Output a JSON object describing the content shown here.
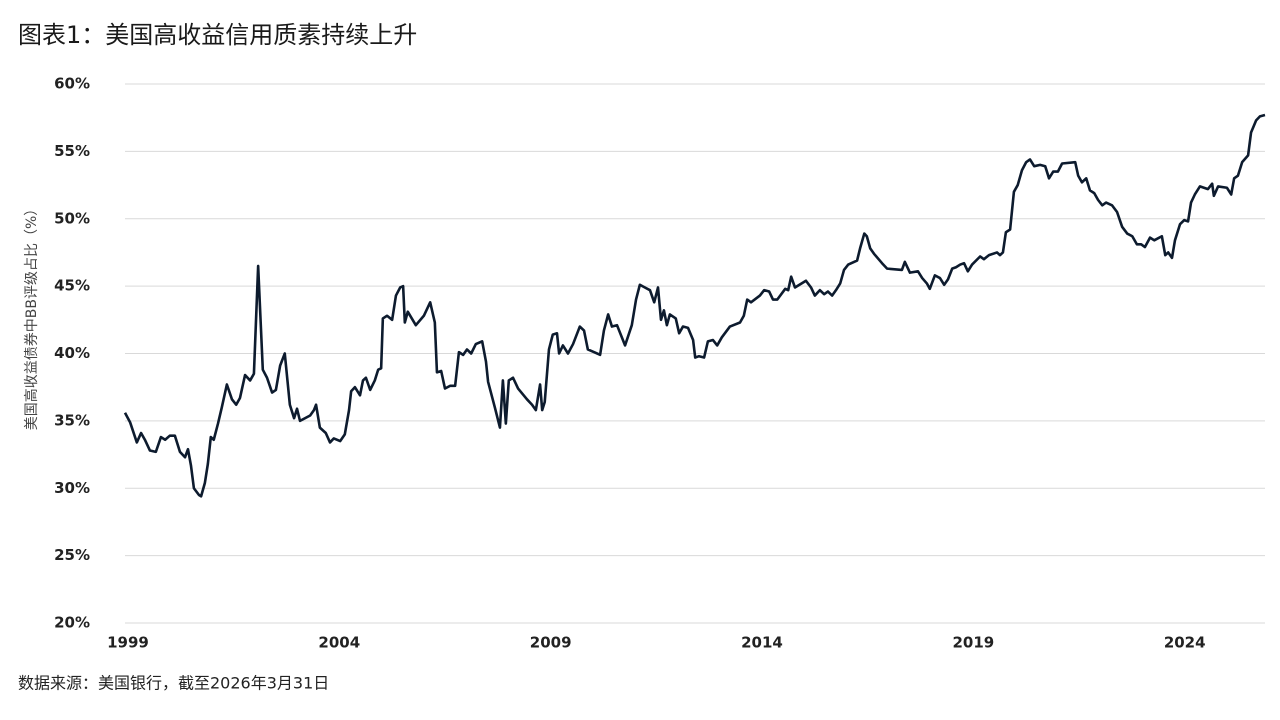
{
  "chart_data": {
    "type": "line",
    "title": "图表1：美国高收益信用质素持续上升",
    "y_label": "美国高收益债券中BB评级占比（%）",
    "source": "数据来源：美国银行，截至2026年3月31日",
    "xlim": [
      1998.93,
      2025.9
    ],
    "xticks": [
      1999,
      2004,
      2009,
      2014,
      2019,
      2024
    ],
    "ylim": [
      20,
      60
    ],
    "yticks": [
      {
        "value": 20,
        "label": "20%"
      },
      {
        "value": 25,
        "label": "25%"
      },
      {
        "value": 30,
        "label": "30%"
      },
      {
        "value": 35,
        "label": "35%"
      },
      {
        "value": 40,
        "label": "40%"
      },
      {
        "value": 45,
        "label": "45%"
      },
      {
        "value": 50,
        "label": "50%"
      },
      {
        "value": 55,
        "label": "55%"
      },
      {
        "value": 60,
        "label": "60%"
      }
    ],
    "grid": true,
    "series": [
      {
        "color": "#0d1b2e",
        "x": [
          1998.93,
          1999.05,
          1999.21,
          1999.31,
          1999.4,
          1999.52,
          1999.66,
          1999.78,
          1999.88,
          1999.99,
          2000.11,
          2000.23,
          2000.35,
          2000.42,
          2000.49,
          2000.56,
          2000.68,
          2000.73,
          2000.82,
          2000.89,
          2000.96,
          2001.03,
          2001.13,
          2001.22,
          2001.34,
          2001.46,
          2001.56,
          2001.65,
          2001.77,
          2001.89,
          2001.98,
          2002.08,
          2002.19,
          2002.29,
          2002.41,
          2002.5,
          2002.6,
          2002.71,
          2002.83,
          2002.93,
          2003.0,
          2003.07,
          2003.31,
          2003.4,
          2003.45,
          2003.54,
          2003.68,
          2003.78,
          2003.87,
          2004.02,
          2004.13,
          2004.23,
          2004.28,
          2004.37,
          2004.49,
          2004.56,
          2004.63,
          2004.73,
          2004.84,
          2004.92,
          2004.99,
          2005.03,
          2005.13,
          2005.25,
          2005.34,
          2005.44,
          2005.51,
          2005.55,
          2005.62,
          2005.81,
          2006.0,
          2006.15,
          2006.26,
          2006.31,
          2006.41,
          2006.5,
          2006.62,
          2006.74,
          2006.83,
          2006.93,
          2007.02,
          2007.12,
          2007.23,
          2007.38,
          2007.47,
          2007.52,
          2007.68,
          2007.8,
          2007.87,
          2007.94,
          2008.01,
          2008.11,
          2008.23,
          2008.44,
          2008.56,
          2008.65,
          2008.75,
          2008.8,
          2008.86,
          2008.96,
          2009.05,
          2009.15,
          2009.2,
          2009.29,
          2009.41,
          2009.53,
          2009.69,
          2009.79,
          2009.88,
          2010.03,
          2010.17,
          2010.26,
          2010.36,
          2010.45,
          2010.57,
          2010.76,
          2010.92,
          2011.02,
          2011.11,
          2011.23,
          2011.35,
          2011.45,
          2011.54,
          2011.61,
          2011.68,
          2011.75,
          2011.82,
          2011.96,
          2012.04,
          2012.13,
          2012.25,
          2012.37,
          2012.42,
          2012.51,
          2012.63,
          2012.72,
          2012.84,
          2012.94,
          2013.05,
          2013.24,
          2013.48,
          2013.57,
          2013.65,
          2013.74,
          2013.95,
          2014.05,
          2014.17,
          2014.26,
          2014.36,
          2014.55,
          2014.62,
          2014.69,
          2014.78,
          2015.04,
          2015.16,
          2015.25,
          2015.37,
          2015.47,
          2015.56,
          2015.66,
          2015.75,
          2015.85,
          2015.94,
          2016.04,
          2016.25,
          2016.32,
          2016.42,
          2016.48,
          2016.56,
          2016.65,
          2016.84,
          2016.96,
          2017.31,
          2017.38,
          2017.5,
          2017.69,
          2017.79,
          2017.9,
          2017.97,
          2018.09,
          2018.21,
          2018.31,
          2018.4,
          2018.5,
          2018.59,
          2018.69,
          2018.78,
          2018.87,
          2018.97,
          2019.16,
          2019.25,
          2019.37,
          2019.56,
          2019.63,
          2019.7,
          2019.77,
          2019.87,
          2019.96,
          2020.05,
          2020.15,
          2020.25,
          2020.34,
          2020.44,
          2020.58,
          2020.7,
          2020.79,
          2020.89,
          2021.0,
          2021.1,
          2021.41,
          2021.48,
          2021.57,
          2021.67,
          2021.76,
          2021.86,
          2021.95,
          2022.05,
          2022.14,
          2022.28,
          2022.4,
          2022.52,
          2022.64,
          2022.76,
          2022.87,
          2022.97,
          2023.06,
          2023.18,
          2023.28,
          2023.46,
          2023.54,
          2023.61,
          2023.7,
          2023.77,
          2023.89,
          2023.99,
          2024.08,
          2024.15,
          2024.24,
          2024.36,
          2024.55,
          2024.65,
          2024.69,
          2024.79,
          2025.0,
          2025.1,
          2025.17,
          2025.26,
          2025.36,
          2025.5,
          2025.57,
          2025.69,
          2025.78,
          2025.9
        ],
        "values": [
          35.6,
          34.9,
          33.4,
          34.1,
          33.6,
          32.8,
          32.7,
          33.8,
          33.6,
          33.9,
          33.9,
          32.7,
          32.3,
          32.9,
          31.7,
          30.0,
          29.5,
          29.4,
          30.4,
          31.8,
          33.8,
          33.6,
          34.8,
          36.0,
          37.7,
          36.6,
          36.2,
          36.7,
          38.4,
          38.0,
          38.5,
          46.5,
          38.8,
          38.2,
          37.1,
          37.3,
          39.1,
          40.0,
          36.2,
          35.2,
          35.9,
          35.0,
          35.4,
          35.8,
          36.2,
          34.5,
          34.1,
          33.4,
          33.7,
          33.5,
          34.0,
          35.8,
          37.2,
          37.5,
          36.9,
          38.0,
          38.2,
          37.3,
          38.0,
          38.8,
          38.9,
          42.6,
          42.8,
          42.5,
          44.3,
          44.9,
          45.0,
          42.3,
          43.1,
          42.1,
          42.8,
          43.8,
          42.3,
          38.6,
          38.7,
          37.4,
          37.6,
          37.6,
          40.1,
          39.9,
          40.3,
          40.0,
          40.7,
          40.9,
          39.4,
          37.9,
          36.0,
          34.5,
          38.0,
          34.8,
          38.0,
          38.2,
          37.4,
          36.6,
          36.2,
          35.8,
          37.7,
          35.8,
          36.4,
          40.3,
          41.4,
          41.5,
          40.0,
          40.6,
          40.0,
          40.7,
          42.0,
          41.7,
          40.3,
          40.1,
          39.9,
          41.7,
          42.9,
          42.0,
          42.1,
          40.6,
          42.1,
          44.0,
          45.1,
          44.9,
          44.7,
          43.8,
          44.9,
          42.5,
          43.2,
          42.1,
          42.9,
          42.6,
          41.5,
          42.0,
          41.9,
          41.0,
          39.7,
          39.8,
          39.7,
          40.9,
          41.0,
          40.6,
          41.2,
          42.0,
          42.3,
          42.8,
          44.0,
          43.8,
          44.3,
          44.7,
          44.6,
          44.0,
          44.0,
          44.8,
          44.7,
          45.7,
          44.9,
          45.4,
          44.9,
          44.3,
          44.7,
          44.4,
          44.6,
          44.3,
          44.7,
          45.2,
          46.2,
          46.6,
          46.9,
          47.8,
          48.9,
          48.7,
          47.8,
          47.4,
          46.7,
          46.3,
          46.2,
          46.8,
          46.0,
          46.1,
          45.6,
          45.2,
          44.8,
          45.8,
          45.6,
          45.1,
          45.5,
          46.3,
          46.4,
          46.6,
          46.7,
          46.1,
          46.6,
          47.2,
          47.0,
          47.3,
          47.5,
          47.3,
          47.5,
          49.0,
          49.2,
          52.0,
          52.5,
          53.6,
          54.2,
          54.4,
          53.9,
          54.0,
          53.9,
          53.0,
          53.5,
          53.5,
          54.1,
          54.2,
          53.2,
          52.7,
          53.0,
          52.1,
          51.9,
          51.4,
          51.0,
          51.2,
          51.0,
          50.5,
          49.4,
          48.9,
          48.7,
          48.1,
          48.1,
          47.9,
          48.6,
          48.4,
          48.7,
          47.3,
          47.5,
          47.1,
          48.4,
          49.6,
          49.9,
          49.8,
          51.2,
          51.8,
          52.4,
          52.2,
          52.6,
          51.7,
          52.4,
          52.3,
          51.8,
          53.0,
          53.2,
          54.2,
          54.7,
          56.4,
          57.3,
          57.6,
          57.7
        ]
      }
    ]
  }
}
